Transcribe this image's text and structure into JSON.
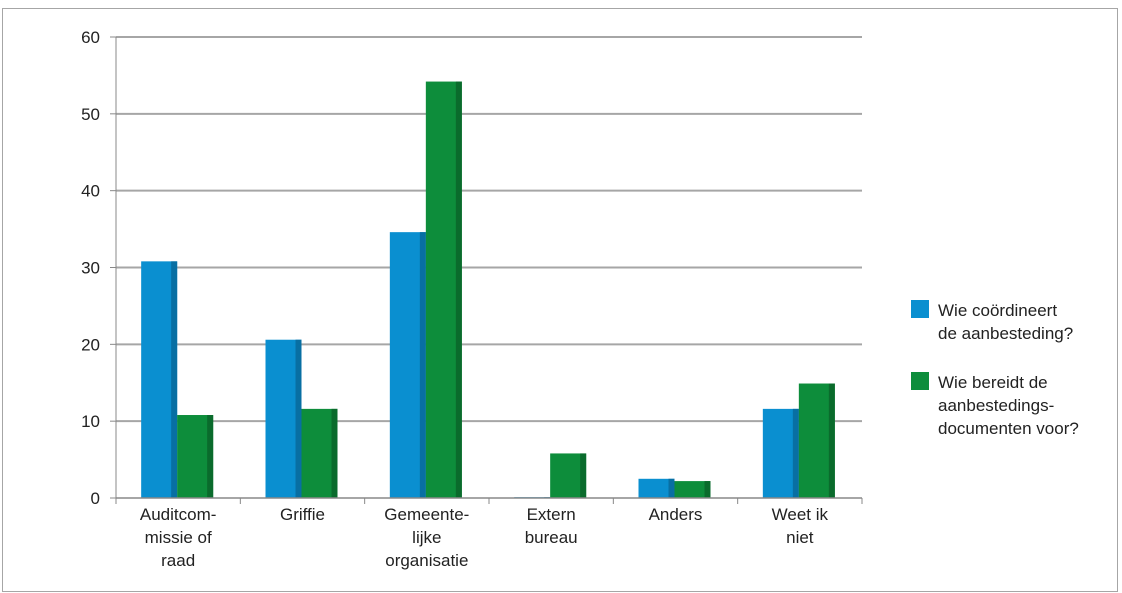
{
  "chart_data": {
    "type": "bar",
    "categories": [
      [
        "Auditcom-",
        "missie of",
        "raad"
      ],
      [
        "Griffie"
      ],
      [
        "Gemeente-",
        "lijke",
        "organisatie"
      ],
      [
        "Extern",
        "bureau"
      ],
      [
        "Anders"
      ],
      [
        "Weet ik",
        "niet"
      ]
    ],
    "series": [
      {
        "name": [
          "Wie coördineert",
          "de aanbesteding?"
        ],
        "values": [
          30.8,
          20.6,
          34.6,
          0.1,
          2.5,
          11.6
        ],
        "color": "#0a8fd0",
        "side_color": "#086fa3"
      },
      {
        "name": [
          "Wie bereidt de",
          "aanbestedings-",
          "documenten voor?"
        ],
        "values": [
          10.8,
          11.6,
          54.2,
          5.8,
          2.2,
          14.9
        ],
        "color": "#0d8d3b",
        "side_color": "#0a6b2c"
      }
    ],
    "yticks": [
      "0",
      "10",
      "20",
      "30",
      "40",
      "50",
      "60"
    ],
    "ylim": [
      0,
      60
    ],
    "grid": true,
    "legend_position": "right"
  }
}
